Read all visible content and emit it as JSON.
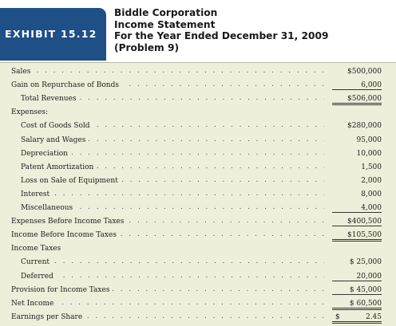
{
  "exhibit_label": "EXHIBIT 15.12",
  "title_lines": [
    "Biddle Corporation",
    "Income Statement",
    "For the Year Ended December 31, 2009",
    "(Problem 9)"
  ],
  "rows": [
    {
      "label": "Sales",
      "amount": "$500,000",
      "indent": 0,
      "rule": ""
    },
    {
      "label": "Gain on Repurchase of Bonds",
      "amount": "6,000",
      "indent": 0,
      "rule": "single"
    },
    {
      "label": "Total Revenues",
      "amount": "$506,000",
      "indent": 1,
      "rule": "double"
    },
    {
      "label": "Expenses:",
      "amount": "",
      "indent": 0,
      "rule": "",
      "dots": false
    },
    {
      "label": "Cost of Goods Sold",
      "amount": "$280,000",
      "indent": 1,
      "rule": ""
    },
    {
      "label": "Salary and Wages",
      "amount": "95,000",
      "indent": 1,
      "rule": ""
    },
    {
      "label": "Depreciation",
      "amount": "10,000",
      "indent": 1,
      "rule": ""
    },
    {
      "label": "Patent Amortization",
      "amount": "1,500",
      "indent": 1,
      "rule": ""
    },
    {
      "label": "Loss on Sale of Equipment",
      "amount": "2,000",
      "indent": 1,
      "rule": ""
    },
    {
      "label": "Interest",
      "amount": "8,000",
      "indent": 1,
      "rule": ""
    },
    {
      "label": "Miscellaneous",
      "amount": "4,000",
      "indent": 1,
      "rule": "single"
    },
    {
      "label": "Expenses Before Income Taxes",
      "amount": "$400,500",
      "indent": 0,
      "rule": "single"
    },
    {
      "label": "Income Before Income Taxes",
      "amount": "$105,500",
      "indent": 0,
      "rule": "double"
    },
    {
      "label": "Income Taxes",
      "amount": "",
      "indent": 0,
      "rule": "",
      "dots": false
    },
    {
      "label": "Current",
      "amount": "$ 25,000",
      "indent": 1,
      "rule": ""
    },
    {
      "label": "Deferred",
      "amount": "20,000",
      "indent": 1,
      "rule": "single"
    },
    {
      "label": "Provision for Income Taxes",
      "amount": "$ 45,000",
      "indent": 0,
      "rule": "single"
    },
    {
      "label": "Net Income",
      "amount": "$ 60,500",
      "indent": 0,
      "rule": "double"
    },
    {
      "label": "Earnings per Share",
      "amount": "2.45",
      "dollar": "$",
      "indent": 0,
      "rule": "double"
    }
  ]
}
